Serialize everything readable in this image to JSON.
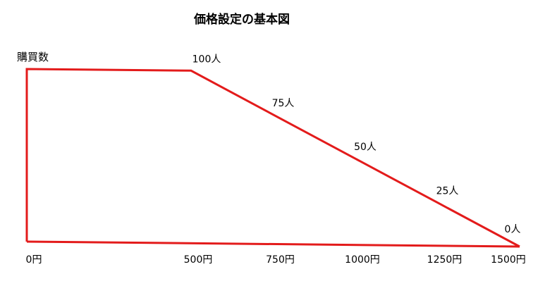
{
  "chart_data": {
    "type": "line",
    "title": "価格設定の基本図",
    "xlabel": "",
    "ylabel": "購買数",
    "categories": [
      "0円",
      "500円",
      "750円",
      "1000円",
      "1250円",
      "1500円"
    ],
    "x": [
      0,
      500,
      750,
      1000,
      1250,
      1500
    ],
    "series": [
      {
        "x": [
          0,
          0,
          500,
          750,
          1000,
          1250,
          1500
        ],
        "values": [
          0,
          100,
          100,
          75,
          50,
          25,
          0
        ],
        "labels": [
          "",
          "",
          "100人",
          "75人",
          "50人",
          "25人",
          "0人"
        ],
        "color": "#e31b1b"
      },
      {
        "x": [
          0,
          1500
        ],
        "values": [
          0,
          0
        ],
        "color": "#e31b1b"
      }
    ],
    "xlim": [
      0,
      1500
    ],
    "ylim": [
      0,
      100
    ],
    "grid": false,
    "legend": "none"
  }
}
